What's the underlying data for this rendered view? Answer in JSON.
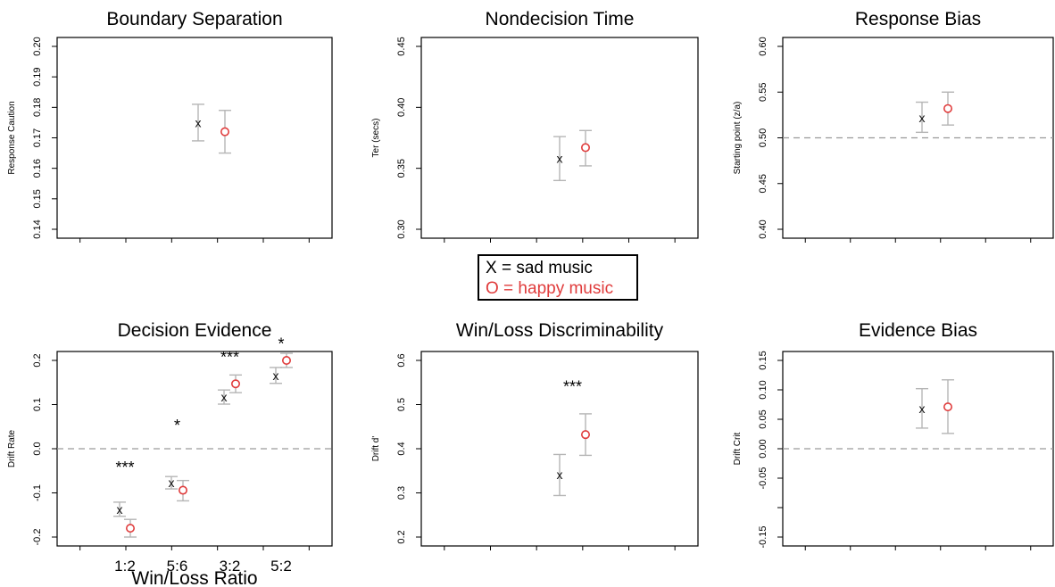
{
  "legend": {
    "sad_label": "X = sad music",
    "happy_label": "O = happy music",
    "sad_color": "#111111",
    "happy_color": "#e03c3c"
  },
  "colors": {
    "errorbar": "#b5b5b5",
    "axis": "#000000",
    "refline": "#9a9a9a"
  },
  "chart_data": [
    {
      "type": "scatter",
      "title": "Boundary Separation",
      "ylabel": "Response Caution",
      "ylim": [
        0.14,
        0.2
      ],
      "yticks": [
        0.14,
        0.15,
        0.16,
        0.17,
        0.18,
        0.19,
        0.2
      ],
      "ytick_labels": [
        "0.14",
        "0.15",
        "0.16",
        "0.17",
        "0.18",
        "0.19",
        "0.20"
      ],
      "categories": [
        ""
      ],
      "category_labels": [],
      "series": [
        {
          "marker": "X",
          "values": [
            0.175
          ],
          "lower": [
            0.169
          ],
          "upper": [
            0.181
          ]
        },
        {
          "marker": "O",
          "values": [
            0.172
          ],
          "lower": [
            0.165
          ],
          "upper": [
            0.179
          ]
        }
      ],
      "annotations": []
    },
    {
      "type": "scatter",
      "title": "Nondecision Time",
      "ylabel": "Ter (secs)",
      "ylim": [
        0.3,
        0.45
      ],
      "yticks": [
        0.3,
        0.35,
        0.4,
        0.45
      ],
      "ytick_labels": [
        "0.30",
        "0.35",
        "0.40",
        "0.45"
      ],
      "categories": [
        ""
      ],
      "category_labels": [],
      "series": [
        {
          "marker": "X",
          "values": [
            0.358
          ],
          "lower": [
            0.34
          ],
          "upper": [
            0.376
          ]
        },
        {
          "marker": "O",
          "values": [
            0.367
          ],
          "lower": [
            0.352
          ],
          "upper": [
            0.381
          ]
        }
      ],
      "annotations": []
    },
    {
      "type": "scatter",
      "title": "Response Bias",
      "ylabel": "Starting point (z/a)",
      "ylim": [
        0.4,
        0.6
      ],
      "yticks": [
        0.4,
        0.45,
        0.5,
        0.55,
        0.6
      ],
      "ytick_labels": [
        "0.40",
        "0.45",
        "0.50",
        "0.55",
        "0.60"
      ],
      "reference_line": 0.5,
      "categories": [
        ""
      ],
      "category_labels": [],
      "series": [
        {
          "marker": "X",
          "values": [
            0.522
          ],
          "lower": [
            0.506
          ],
          "upper": [
            0.539
          ]
        },
        {
          "marker": "O",
          "values": [
            0.532
          ],
          "lower": [
            0.514
          ],
          "upper": [
            0.55
          ]
        }
      ],
      "annotations": []
    },
    {
      "type": "scatter",
      "title": "Decision Evidence",
      "ylabel": "Drift Rate",
      "xlabel": "Win/Loss Ratio",
      "ylim": [
        -0.2,
        0.2
      ],
      "yticks": [
        -0.2,
        -0.1,
        0.0,
        0.1,
        0.2
      ],
      "ytick_labels": [
        "-0.2",
        "-0.1",
        "0.0",
        "0.1",
        "0.2"
      ],
      "reference_line": 0.0,
      "categories": [
        "1:2",
        "5:6",
        "3:2",
        "5:2"
      ],
      "category_labels": [
        "1:2",
        "5:6",
        "3:2",
        "5:2"
      ],
      "series": [
        {
          "marker": "X",
          "values": [
            -0.137,
            -0.077,
            0.117,
            0.166
          ],
          "lower": [
            -0.153,
            -0.091,
            0.101,
            0.148
          ],
          "upper": [
            -0.121,
            -0.063,
            0.133,
            0.184
          ]
        },
        {
          "marker": "O",
          "values": [
            -0.18,
            -0.094,
            0.147,
            0.2
          ],
          "lower": [
            -0.2,
            -0.118,
            0.127,
            0.184
          ],
          "upper": [
            -0.16,
            -0.072,
            0.167,
            0.216
          ]
        }
      ],
      "annotations": [
        "***",
        "*",
        "***",
        "*"
      ],
      "annotation_values": [
        -0.055,
        0.04,
        0.195,
        0.225
      ]
    },
    {
      "type": "scatter",
      "title": "Win/Loss Discriminability",
      "ylabel": "Drift d'",
      "ylim": [
        0.2,
        0.6
      ],
      "yticks": [
        0.2,
        0.3,
        0.4,
        0.5,
        0.6
      ],
      "ytick_labels": [
        "0.2",
        "0.3",
        "0.4",
        "0.5",
        "0.6"
      ],
      "categories": [
        ""
      ],
      "category_labels": [],
      "series": [
        {
          "marker": "X",
          "values": [
            0.341
          ],
          "lower": [
            0.294
          ],
          "upper": [
            0.387
          ]
        },
        {
          "marker": "O",
          "values": [
            0.432
          ],
          "lower": [
            0.385
          ],
          "upper": [
            0.479
          ]
        }
      ],
      "annotations": [
        "***"
      ],
      "annotation_values": [
        0.528
      ]
    },
    {
      "type": "scatter",
      "title": "Evidence Bias",
      "ylabel": "Drift Crit",
      "ylim": [
        -0.15,
        0.15
      ],
      "yticks": [
        -0.15,
        -0.1,
        -0.05,
        0.0,
        0.05,
        0.1,
        0.15
      ],
      "ytick_labels": [
        "-0.15",
        "",
        "-0.05",
        "0.00",
        "0.05",
        "0.10",
        "0.15"
      ],
      "reference_line": 0.0,
      "categories": [
        ""
      ],
      "category_labels": [],
      "series": [
        {
          "marker": "X",
          "values": [
            0.068
          ],
          "lower": [
            0.035
          ],
          "upper": [
            0.102
          ]
        },
        {
          "marker": "O",
          "values": [
            0.071
          ],
          "lower": [
            0.026
          ],
          "upper": [
            0.117
          ]
        }
      ],
      "annotations": []
    }
  ]
}
